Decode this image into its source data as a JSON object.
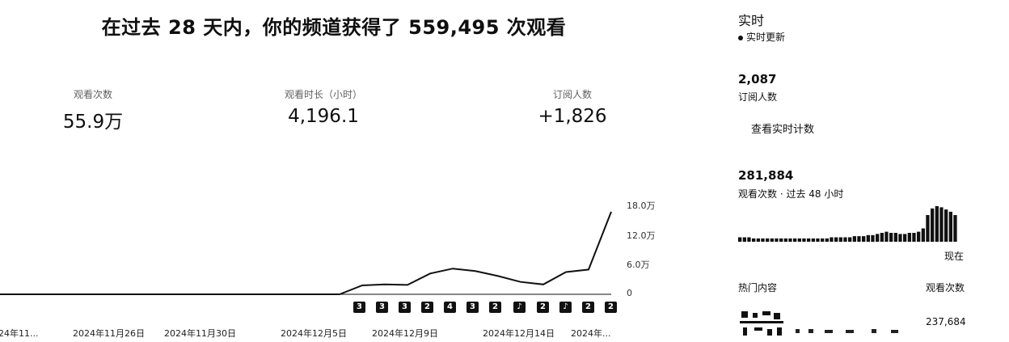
{
  "headline": "在过去 28 天内，你的频道获得了 559,495 次观看",
  "metrics": [
    {
      "label": "观看次数",
      "value": "55.9万"
    },
    {
      "label": "观看时长（小时）",
      "value": "4,196.1"
    },
    {
      "label": "订阅人数",
      "value": "+1,826"
    }
  ],
  "chart_data": {
    "type": "line",
    "title": "",
    "ylabel": "",
    "ylim": [
      0,
      180000
    ],
    "yticks": [
      "18.0万",
      "12.0万",
      "6.0万",
      "0"
    ],
    "ytick_values": [
      180000,
      120000,
      60000,
      0
    ],
    "x": [
      0,
      1,
      2,
      3,
      4,
      5,
      6,
      7,
      8,
      9,
      10,
      11,
      12,
      13,
      14,
      15,
      16,
      17,
      18,
      19,
      20,
      21,
      22,
      23,
      24,
      25,
      26,
      27
    ],
    "values": [
      0,
      0,
      0,
      0,
      0,
      0,
      0,
      0,
      0,
      0,
      0,
      0,
      0,
      0,
      0,
      0,
      18000,
      20000,
      19000,
      42000,
      52000,
      47000,
      37000,
      25000,
      20000,
      45000,
      50000,
      167000
    ],
    "xtick_labels": [
      "2024年11...",
      "2024年11月26日",
      "2024年11月30日",
      "2024年12月5日",
      "2024年12月9日",
      "2024年12月14日",
      "2024年..."
    ],
    "markers": [
      "3",
      "3",
      "3",
      "2",
      "4",
      "3",
      "2",
      "♪",
      "2",
      "♪",
      "2",
      "2"
    ]
  },
  "realtime": {
    "title": "实时",
    "live_label": "实时更新",
    "subscribers_value": "2,087",
    "subscribers_label": "订阅人数",
    "view_live_link": "查看实时计数",
    "views_value": "281,884",
    "views_label": "观看次数 · 过去 48 小时",
    "now_label": "现在",
    "hourly_bars": [
      4,
      4,
      4,
      3,
      3,
      3,
      3,
      3,
      3,
      3,
      3,
      3,
      3,
      3,
      3,
      3,
      3,
      3,
      3,
      3,
      4,
      4,
      4,
      4,
      4,
      5,
      5,
      5,
      6,
      6,
      7,
      8,
      9,
      8,
      8,
      7,
      7,
      8,
      8,
      9,
      12,
      24,
      30,
      32,
      31,
      29,
      27,
      24
    ],
    "top_content_label": "热门内容",
    "views_col_label": "观看次数",
    "top_item_value": "237,684"
  }
}
